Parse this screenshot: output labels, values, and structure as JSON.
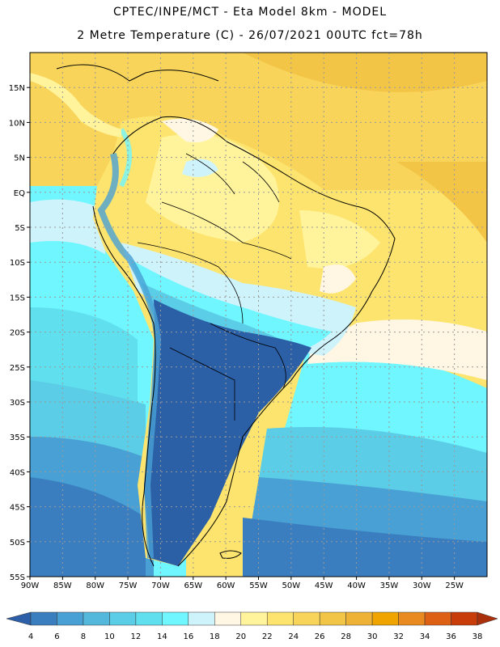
{
  "header": {
    "title_line1": "CPTEC/INPE/MCT -  Eta Model 8km - MODEL",
    "title_line2": "2 Metre Temperature (C) - 26/07/2021 00UTC fct=78h"
  },
  "map": {
    "lon_range": [
      -90,
      -20
    ],
    "lat_range": [
      -55,
      20
    ],
    "lat_labels": [
      "15N",
      "10N",
      "5N",
      "EQ",
      "5S",
      "10S",
      "15S",
      "20S",
      "25S",
      "30S",
      "35S",
      "40S",
      "45S",
      "50S",
      "55S"
    ],
    "lon_labels": [
      "90W",
      "85W",
      "80W",
      "75W",
      "70W",
      "65W",
      "60W",
      "55W",
      "50W",
      "45W",
      "40W",
      "35W",
      "30W",
      "25W"
    ],
    "grid": "dotted",
    "colors": {
      "ocean_warm": "#f5d36a",
      "land_hot": "#fbe27e",
      "cold_deep": "#2b5fa6"
    }
  },
  "colorbar": {
    "labels": [
      "4",
      "6",
      "8",
      "10",
      "12",
      "14",
      "16",
      "18",
      "20",
      "22",
      "24",
      "26",
      "28",
      "30",
      "32",
      "34",
      "36",
      "38"
    ],
    "colors": [
      "#2c5fa8",
      "#3a7ec0",
      "#48a0d4",
      "#53b8dc",
      "#5ccde6",
      "#60e0ee",
      "#6ff6ff",
      "#cff3fb",
      "#fff7e3",
      "#fff39c",
      "#fde46e",
      "#f8d55a",
      "#f3c547",
      "#eeb336",
      "#f0a400",
      "#e88a1f",
      "#dd6015",
      "#c83c0a",
      "#a9300a"
    ]
  }
}
